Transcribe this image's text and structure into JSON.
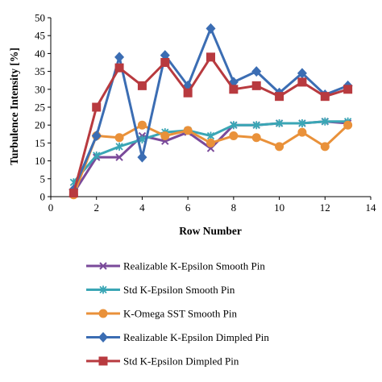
{
  "chart_data": {
    "type": "line",
    "title": "",
    "xlabel": "Row Number",
    "ylabel": "Turbulence Intensity [%]",
    "xlim": [
      0,
      14
    ],
    "ylim": [
      0,
      50
    ],
    "x_ticks": [
      0,
      2,
      4,
      6,
      8,
      10,
      12,
      14
    ],
    "y_ticks": [
      0,
      5,
      10,
      15,
      20,
      25,
      30,
      35,
      40,
      45,
      50
    ],
    "grid": false,
    "legend_position": "bottom",
    "x": [
      1,
      2,
      3,
      4,
      5,
      6,
      7,
      8,
      9,
      10,
      11,
      12,
      13
    ],
    "series": [
      {
        "name": "Realizable K-Epsilon Smooth Pin",
        "color": "#7a4a9a",
        "marker": "x",
        "values": [
          1.0,
          11.0,
          11.0,
          17.0,
          15.5,
          18.0,
          13.5,
          20.0,
          20.0,
          20.5,
          20.5,
          21.0,
          20.5
        ]
      },
      {
        "name": "Std K-Epsilon Smooth Pin",
        "color": "#3aa6b5",
        "marker": "asterisk",
        "values": [
          4.0,
          11.5,
          14.0,
          16.0,
          18.0,
          18.5,
          17.0,
          20.0,
          20.0,
          20.5,
          20.5,
          21.0,
          21.0
        ]
      },
      {
        "name": "K-Omega SST Smooth Pin",
        "color": "#e9913a",
        "marker": "circle",
        "values": [
          0.5,
          17.0,
          16.5,
          20.0,
          17.0,
          18.5,
          15.0,
          17.0,
          16.5,
          14.0,
          18.0,
          14.0,
          20.0
        ]
      },
      {
        "name": "Realizable K-Epsilon Dimpled Pin",
        "color": "#3b6db3",
        "marker": "diamond",
        "values": [
          2.0,
          17.0,
          39.0,
          11.0,
          39.5,
          31.0,
          47.0,
          32.0,
          35.0,
          29.0,
          34.5,
          28.5,
          31.0
        ]
      },
      {
        "name": "Std K-Epsilon Dimpled Pin",
        "color": "#b83a3f",
        "marker": "square",
        "values": [
          1.0,
          25.0,
          36.0,
          31.0,
          37.5,
          29.0,
          39.0,
          30.0,
          31.0,
          28.0,
          32.0,
          28.0,
          30.0
        ]
      }
    ]
  }
}
